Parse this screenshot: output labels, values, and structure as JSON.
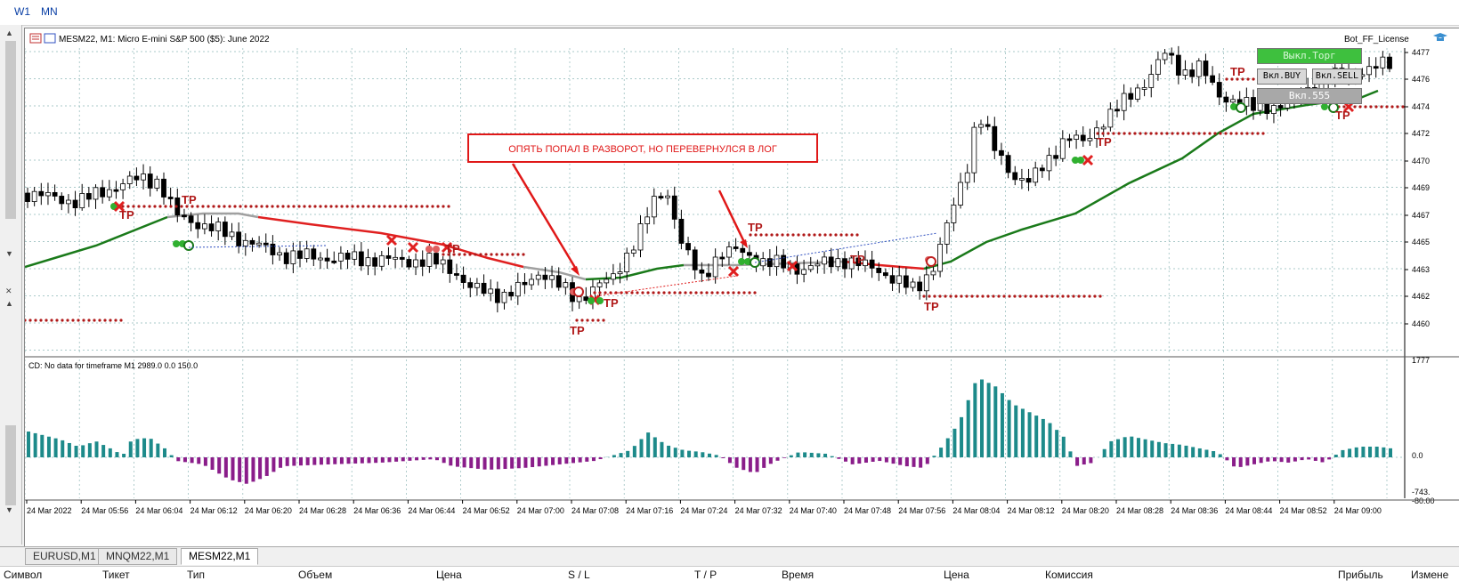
{
  "timeframes": [
    "W1",
    "MN"
  ],
  "chart": {
    "title": "MESM22, M1:  Micro E-mini S&P 500 ($5): June 2022",
    "license": "Bot_FF_License",
    "annotation": "ОПЯТЬ ПОПАЛ В РАЗВОРОТ, НО ПЕРЕВЕРНУЛСЯ В ЛОГ",
    "tp_label": "TP",
    "price_labels": [
      "4477",
      "4476",
      "4474",
      "4472",
      "4470",
      "4469",
      "4467",
      "4465",
      "4463",
      "4462",
      "4460"
    ],
    "indicator_label": "CD: No data for timeframe M1 2989.0 0.0 150.0",
    "indicator_scale": [
      "1777",
      "0.0",
      "-743.",
      "-80.00"
    ],
    "time_labels": [
      "24 Mar 2022",
      "24 Mar 05:56",
      "24 Mar 06:04",
      "24 Mar 06:12",
      "24 Mar 06:20",
      "24 Mar 06:28",
      "24 Mar 06:36",
      "24 Mar 06:44",
      "24 Mar 06:52",
      "24 Mar 07:00",
      "24 Mar 07:08",
      "24 Mar 07:16",
      "24 Mar 07:24",
      "24 Mar 07:32",
      "24 Mar 07:40",
      "24 Mar 07:48",
      "24 Mar 07:56",
      "24 Mar 08:04",
      "24 Mar 08:12",
      "24 Mar 08:20",
      "24 Mar 08:28",
      "24 Mar 08:36",
      "24 Mar 08:44",
      "24 Mar 08:52",
      "24 Mar 09:00"
    ]
  },
  "trade_buttons": {
    "off": "Выкл.Торг",
    "buy": "Вкл.BUY",
    "sell": "Вкл.SELL",
    "v555": "Вкл.555"
  },
  "tabs": [
    "EURUSD,M1",
    "MNQM22,M1",
    "MESM22,M1"
  ],
  "active_tab": "MESM22,M1",
  "columns": [
    "Символ",
    "Тикет",
    "Тип",
    "Объем",
    "Цена",
    "S / L",
    "T / P",
    "Время",
    "Цена",
    "Комиссия",
    "Прибыль",
    "Измене"
  ],
  "colors": {
    "bull_ma": "#1a7a1a",
    "bear_ma": "#e02020",
    "histo_pos": "#1d8a8a",
    "histo_neg": "#8a1d8a",
    "tp_dots": "#b01818"
  }
}
